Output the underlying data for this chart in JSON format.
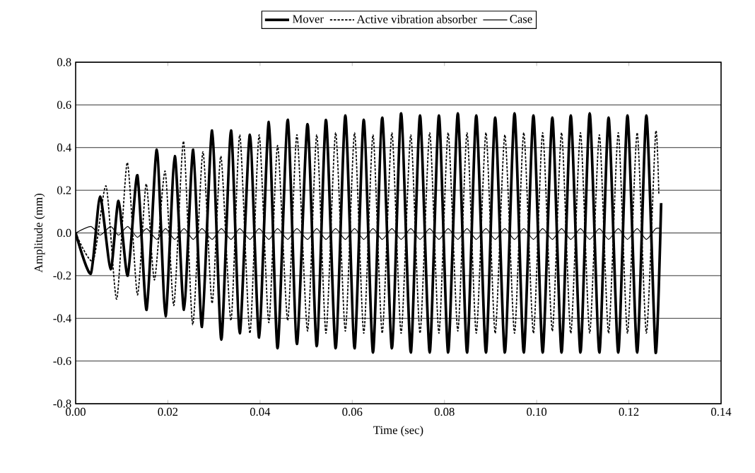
{
  "chart_data": {
    "type": "line",
    "xlabel": "Time (sec)",
    "ylabel": "Amplitude (mm)",
    "xlim": [
      0,
      0.14
    ],
    "ylim": [
      -0.8,
      0.8
    ],
    "xticks": [
      {
        "value": 0,
        "label": "0.00"
      },
      {
        "value": 0.02,
        "label": "0.02"
      },
      {
        "value": 0.04,
        "label": "0.04"
      },
      {
        "value": 0.06,
        "label": "0.06"
      },
      {
        "value": 0.08,
        "label": "0.08"
      },
      {
        "value": 0.1,
        "label": "0.10"
      },
      {
        "value": 0.12,
        "label": "0.12"
      },
      {
        "value": 0.14,
        "label": "0.14"
      }
    ],
    "yticks": [
      {
        "value": -0.8,
        "label": "-0.8"
      },
      {
        "value": -0.6,
        "label": "-0.6"
      },
      {
        "value": -0.4,
        "label": "-0.4"
      },
      {
        "value": -0.2,
        "label": "-0.2"
      },
      {
        "value": 0,
        "label": "0.0"
      },
      {
        "value": 0.2,
        "label": "0.2"
      },
      {
        "value": 0.4,
        "label": "0.4"
      },
      {
        "value": 0.6,
        "label": "0.6"
      },
      {
        "value": 0.8,
        "label": "0.8"
      }
    ],
    "grid": "y",
    "legend": "top",
    "marker": "none",
    "series": [
      {
        "name": "Mover",
        "color": "#000000",
        "line_style": "solid",
        "x": [
          0,
          0.0033,
          0.0053,
          0.0076,
          0.0093,
          0.0113,
          0.0134,
          0.0154,
          0.0176,
          0.0195,
          0.0215,
          0.0235,
          0.0255,
          0.0274,
          0.0296,
          0.0316,
          0.0337,
          0.0356,
          0.0378,
          0.0398,
          0.0419,
          0.0438,
          0.046,
          0.048,
          0.0503,
          0.0523,
          0.0543,
          0.0564,
          0.0585,
          0.0605,
          0.0625,
          0.0645,
          0.0665,
          0.0686,
          0.0706,
          0.0727,
          0.0747,
          0.0768,
          0.0788,
          0.0808,
          0.0829,
          0.0849,
          0.0869,
          0.089,
          0.091,
          0.0931,
          0.0952,
          0.0972,
          0.0993,
          0.1013,
          0.1034,
          0.1054,
          0.1074,
          0.1095,
          0.1115,
          0.1136,
          0.1156,
          0.1177,
          0.1197,
          0.1218,
          0.1238,
          0.1258,
          0.127
        ],
        "values": [
          0,
          -0.19,
          0.17,
          -0.17,
          0.15,
          -0.2,
          0.27,
          -0.36,
          0.39,
          -0.39,
          0.36,
          -0.36,
          0.39,
          -0.44,
          0.48,
          -0.5,
          0.48,
          -0.47,
          0.46,
          -0.49,
          0.52,
          -0.54,
          0.53,
          -0.52,
          0.51,
          -0.53,
          0.53,
          -0.54,
          0.55,
          -0.54,
          0.53,
          -0.56,
          0.54,
          -0.54,
          0.56,
          -0.56,
          0.55,
          -0.56,
          0.55,
          -0.56,
          0.56,
          -0.56,
          0.55,
          -0.56,
          0.54,
          -0.56,
          0.56,
          -0.56,
          0.55,
          -0.56,
          0.54,
          -0.56,
          0.55,
          -0.56,
          0.56,
          -0.56,
          0.54,
          -0.56,
          0.55,
          -0.56,
          0.55,
          -0.56,
          0.14
        ]
      },
      {
        "name": "Active vibration absorber",
        "color": "#000000",
        "line_style": "dashed",
        "x": [
          0,
          0.0038,
          0.0066,
          0.0089,
          0.0112,
          0.0134,
          0.0153,
          0.0171,
          0.0194,
          0.0213,
          0.0234,
          0.0254,
          0.0276,
          0.0296,
          0.0315,
          0.0337,
          0.0356,
          0.0378,
          0.0398,
          0.0419,
          0.0438,
          0.046,
          0.048,
          0.0503,
          0.0523,
          0.0543,
          0.0564,
          0.0585,
          0.0605,
          0.0625,
          0.0645,
          0.0665,
          0.0686,
          0.0706,
          0.0727,
          0.0747,
          0.0768,
          0.0788,
          0.0808,
          0.0829,
          0.0849,
          0.0869,
          0.089,
          0.091,
          0.0931,
          0.0952,
          0.0972,
          0.0993,
          0.1013,
          0.1034,
          0.1054,
          0.1074,
          0.1095,
          0.1115,
          0.1136,
          0.1156,
          0.1177,
          0.1197,
          0.1218,
          0.1238,
          0.1258,
          0.1265
        ],
        "values": [
          0,
          -0.13,
          0.22,
          -0.31,
          0.33,
          -0.29,
          0.23,
          -0.22,
          0.29,
          -0.34,
          0.43,
          -0.43,
          0.38,
          -0.33,
          0.36,
          -0.41,
          0.46,
          -0.47,
          0.46,
          -0.42,
          0.41,
          -0.41,
          0.46,
          -0.46,
          0.46,
          -0.47,
          0.47,
          -0.46,
          0.47,
          -0.47,
          0.46,
          -0.47,
          0.47,
          -0.47,
          0.46,
          -0.47,
          0.47,
          -0.47,
          0.47,
          -0.46,
          0.47,
          -0.47,
          0.47,
          -0.47,
          0.46,
          -0.47,
          0.47,
          -0.47,
          0.47,
          -0.46,
          0.47,
          -0.47,
          0.47,
          -0.47,
          0.46,
          -0.47,
          0.47,
          -0.47,
          0.47,
          -0.47,
          0.47,
          0.18
        ]
      },
      {
        "name": "Case",
        "color": "#000000",
        "line_style": "solid",
        "x": [
          0,
          0.0033,
          0.0053,
          0.0076,
          0.0093,
          0.0113,
          0.0134,
          0.0154,
          0.0176,
          0.0195,
          0.0215,
          0.0235,
          0.0255,
          0.0274,
          0.0296,
          0.0316,
          0.0337,
          0.0356,
          0.0378,
          0.0398,
          0.0419,
          0.0438,
          0.046,
          0.048,
          0.0503,
          0.0523,
          0.0543,
          0.0564,
          0.0585,
          0.0605,
          0.0625,
          0.0645,
          0.0665,
          0.0686,
          0.0706,
          0.0727,
          0.0747,
          0.0768,
          0.0788,
          0.0808,
          0.0829,
          0.0849,
          0.0869,
          0.089,
          0.091,
          0.0931,
          0.0952,
          0.0972,
          0.0993,
          0.1013,
          0.1034,
          0.1054,
          0.1074,
          0.1095,
          0.1115,
          0.1136,
          0.1156,
          0.1177,
          0.1197,
          0.1218,
          0.1238,
          0.1258,
          0.127
        ],
        "values": [
          0,
          0.03,
          -0.01,
          0.03,
          -0.01,
          0.03,
          -0.02,
          0.02,
          -0.03,
          0.02,
          -0.03,
          0.02,
          -0.03,
          0.02,
          -0.03,
          0.02,
          -0.03,
          0.02,
          -0.03,
          0.02,
          -0.03,
          0.02,
          -0.03,
          0.02,
          -0.03,
          0.02,
          -0.03,
          0.02,
          -0.03,
          0.02,
          -0.03,
          0.02,
          -0.03,
          0.02,
          -0.03,
          0.02,
          -0.03,
          0.02,
          -0.03,
          0.02,
          -0.03,
          0.02,
          -0.03,
          0.02,
          -0.03,
          0.02,
          -0.03,
          0.02,
          -0.03,
          0.02,
          -0.03,
          0.02,
          -0.03,
          0.02,
          -0.03,
          0.02,
          -0.03,
          0.02,
          -0.03,
          0.02,
          -0.03,
          0.02,
          0.02
        ]
      }
    ]
  }
}
